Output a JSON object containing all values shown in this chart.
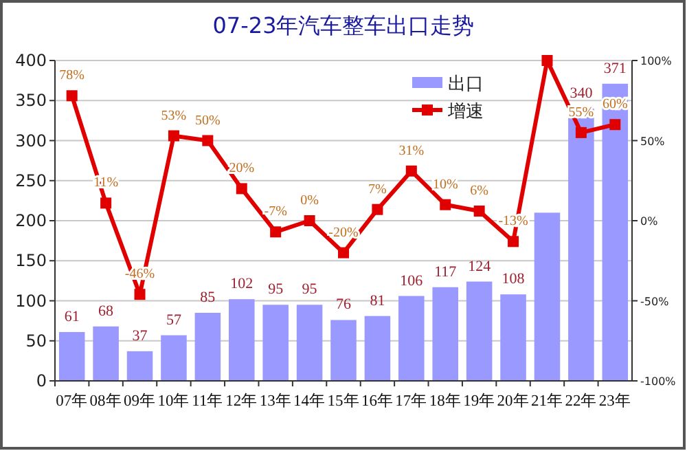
{
  "chart_data": {
    "type": "bar",
    "title": "07-23年汽车整车出口走势",
    "categories": [
      "07年",
      "08年",
      "09年",
      "10年",
      "11年",
      "12年",
      "13年",
      "14年",
      "15年",
      "16年",
      "17年",
      "18年",
      "19年",
      "20年",
      "21年",
      "22年",
      "23年"
    ],
    "series": [
      {
        "name": "出口",
        "color": "#9999ff",
        "values": [
          61,
          68,
          37,
          57,
          85,
          102,
          95,
          95,
          76,
          81,
          106,
          117,
          124,
          108,
          210,
          340,
          371
        ],
        "value_labels": [
          "61",
          "68",
          "37",
          "57",
          "85",
          "102",
          "95",
          "95",
          "76",
          "81",
          "106",
          "117",
          "124",
          "108",
          null,
          "340",
          "371"
        ]
      },
      {
        "name": "增速",
        "type": "line",
        "axis": "y2",
        "color": "#e00000",
        "marker": "square",
        "values": [
          78,
          11,
          -46,
          53,
          50,
          20,
          -7,
          0,
          -20,
          7,
          31,
          10,
          6,
          -13,
          100,
          55,
          60
        ],
        "value_labels": [
          "78%",
          "11%",
          "-46%",
          "53%",
          "50%",
          "20%",
          "-7%",
          "0%",
          "-20%",
          "7%",
          "31%",
          "10%",
          "6%",
          "-13%",
          null,
          "55%",
          "60%"
        ]
      }
    ],
    "ylim": [
      0,
      400
    ],
    "yticks": [
      0,
      50,
      100,
      150,
      200,
      250,
      300,
      350,
      400
    ],
    "y2lim": [
      -100,
      100
    ],
    "y2ticks": [
      {
        "value": -100,
        "label": "-100%"
      },
      {
        "value": -50,
        "label": "-50%"
      },
      {
        "value": 0,
        "label": "0%"
      },
      {
        "value": 50,
        "label": "50%"
      },
      {
        "value": 100,
        "label": "100%"
      }
    ],
    "grid": "y",
    "legend": "top right"
  }
}
